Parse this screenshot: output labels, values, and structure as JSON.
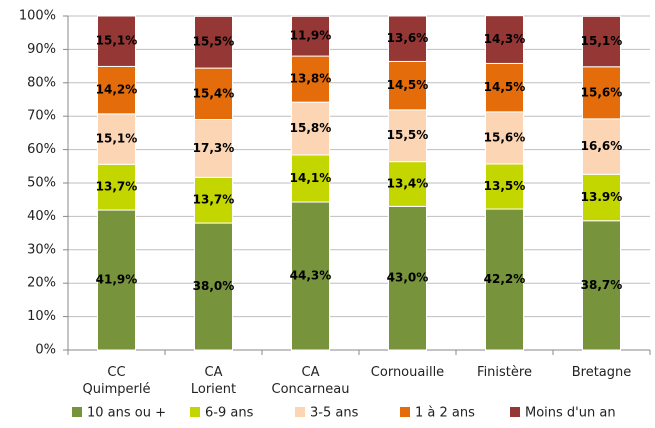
{
  "chart_data": {
    "type": "stacked_bar",
    "categories": [
      [
        "CC",
        "Quimperlé"
      ],
      [
        "CA",
        "Lorient"
      ],
      [
        "CA",
        "Concarneau"
      ],
      [
        "Cornouaille"
      ],
      [
        "Finistère"
      ],
      [
        "Bretagne"
      ]
    ],
    "series": [
      {
        "name": "10 ans ou +",
        "color": "#77933c",
        "values": [
          41.9,
          38.0,
          44.3,
          43.0,
          42.2,
          38.7
        ],
        "value_labels": [
          "41,9%",
          "38,0%",
          "44,3%",
          "43,0%",
          "42,2%",
          "38,7%"
        ]
      },
      {
        "name": "6-9 ans",
        "color": "#c4d600",
        "values": [
          13.7,
          13.7,
          14.1,
          13.4,
          13.5,
          13.9
        ],
        "value_labels": [
          "13,7%",
          "13,7%",
          "14,1%",
          "13,4%",
          "13,5%",
          "13.9%"
        ]
      },
      {
        "name": "3-5 ans",
        "color": "#fcd5b5",
        "values": [
          15.1,
          17.3,
          15.8,
          15.5,
          15.6,
          16.6
        ],
        "value_labels": [
          "15,1%",
          "17,3%",
          "15,8%",
          "15,5%",
          "15,6%",
          "16,6%"
        ]
      },
      {
        "name": "1 à 2 ans",
        "color": "#e46c0a",
        "values": [
          14.2,
          15.4,
          13.8,
          14.5,
          14.5,
          15.6
        ],
        "value_labels": [
          "14,2%",
          "15,4%",
          "13,8%",
          "14,5%",
          "14,5%",
          "15,6%"
        ]
      },
      {
        "name": "Moins d'un an",
        "color": "#953735",
        "values": [
          15.1,
          15.5,
          11.9,
          13.6,
          14.3,
          15.1
        ],
        "value_labels": [
          "15,1%",
          "15,5%",
          "11,9%",
          "13,6%",
          "14,3%",
          "15,1%"
        ]
      }
    ],
    "ylim": [
      0,
      100
    ],
    "yticks": [
      {
        "value": 0,
        "label": "0%"
      },
      {
        "value": 10,
        "label": "10%"
      },
      {
        "value": 20,
        "label": "20%"
      },
      {
        "value": 30,
        "label": "30%"
      },
      {
        "value": 40,
        "label": "40%"
      },
      {
        "value": 50,
        "label": "50%"
      },
      {
        "value": 60,
        "label": "60%"
      },
      {
        "value": 70,
        "label": "70%"
      },
      {
        "value": 80,
        "label": "80%"
      },
      {
        "value": 90,
        "label": "90%"
      },
      {
        "value": 100,
        "label": "100%"
      }
    ],
    "grid": true,
    "legend": "bottom"
  }
}
